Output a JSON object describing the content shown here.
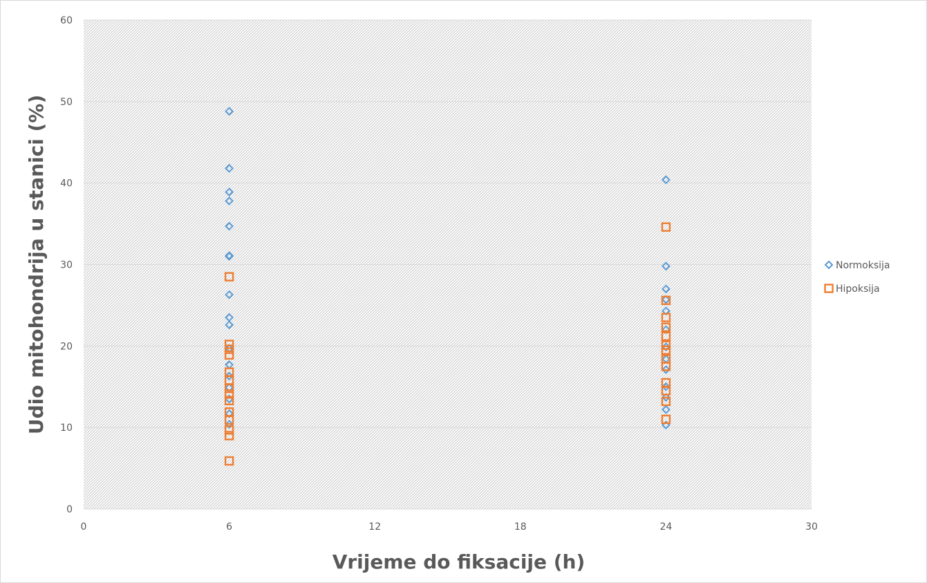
{
  "chart_data": {
    "type": "scatter",
    "title": "",
    "xlabel": "Vrijeme do fiksacije (h)",
    "ylabel": "Udio mitohondrija u stanici (%)",
    "xlim": [
      0,
      30
    ],
    "ylim": [
      0,
      60
    ],
    "xticks": [
      0,
      6,
      12,
      18,
      24,
      30
    ],
    "yticks": [
      0,
      10,
      20,
      30,
      40,
      50,
      60
    ],
    "grid": true,
    "legend_position": "right",
    "series": [
      {
        "name": "Normoksija",
        "marker": "diamond",
        "color": "#5b9bd5",
        "points": [
          [
            6,
            48.8
          ],
          [
            6,
            41.8
          ],
          [
            6,
            38.9
          ],
          [
            6,
            37.8
          ],
          [
            6,
            34.7
          ],
          [
            6,
            31.1
          ],
          [
            6,
            31.0
          ],
          [
            6,
            26.3
          ],
          [
            6,
            23.5
          ],
          [
            6,
            22.6
          ],
          [
            6,
            19.7
          ],
          [
            6,
            17.7
          ],
          [
            6,
            16.3
          ],
          [
            6,
            14.9
          ],
          [
            6,
            13.5
          ],
          [
            6,
            11.7
          ],
          [
            6,
            10.4
          ],
          [
            24,
            40.4
          ],
          [
            24,
            29.8
          ],
          [
            24,
            27.0
          ],
          [
            24,
            25.7
          ],
          [
            24,
            24.3
          ],
          [
            24,
            22.0
          ],
          [
            24,
            19.9
          ],
          [
            24,
            18.4
          ],
          [
            24,
            17.1
          ],
          [
            24,
            15.0
          ],
          [
            24,
            13.7
          ],
          [
            24,
            12.2
          ],
          [
            24,
            10.3
          ]
        ]
      },
      {
        "name": "Hipoksija",
        "marker": "square",
        "color": "#ed7d31",
        "points": [
          [
            6,
            28.5
          ],
          [
            6,
            20.2
          ],
          [
            6,
            19.6
          ],
          [
            6,
            18.9
          ],
          [
            6,
            16.8
          ],
          [
            6,
            15.8
          ],
          [
            6,
            14.8
          ],
          [
            6,
            14.1
          ],
          [
            6,
            13.3
          ],
          [
            6,
            11.9
          ],
          [
            6,
            10.9
          ],
          [
            6,
            9.7
          ],
          [
            6,
            9.0
          ],
          [
            6,
            5.9
          ],
          [
            24,
            34.6
          ],
          [
            24,
            25.6
          ],
          [
            24,
            23.5
          ],
          [
            24,
            22.3
          ],
          [
            24,
            21.2
          ],
          [
            24,
            20.1
          ],
          [
            24,
            19.5
          ],
          [
            24,
            18.4
          ],
          [
            24,
            17.5
          ],
          [
            24,
            15.5
          ],
          [
            24,
            14.5
          ],
          [
            24,
            13.2
          ],
          [
            24,
            11.0
          ]
        ]
      }
    ]
  }
}
